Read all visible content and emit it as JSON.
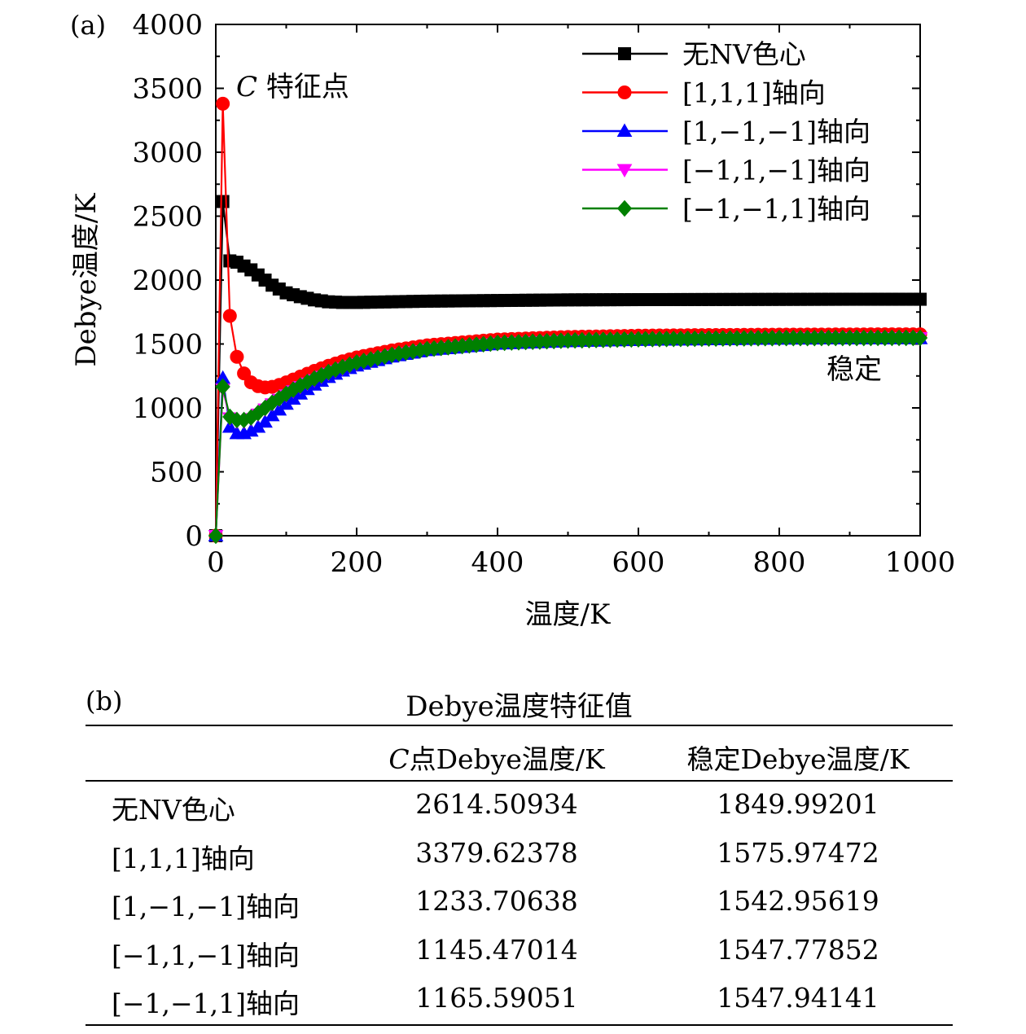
{
  "chart_data": {
    "type": "line",
    "panel_label": "(a)",
    "xlabel": "温度/K",
    "ylabel": "Debye温度/K",
    "xlim": [
      0,
      1000
    ],
    "ylim": [
      0,
      4000
    ],
    "xticks": [
      "0",
      "200",
      "400",
      "600",
      "800",
      "1000"
    ],
    "yticks": [
      "0",
      "500",
      "1000",
      "1500",
      "2000",
      "2500",
      "3000",
      "3500",
      "4000"
    ],
    "grid": false,
    "legend_position": "top-right",
    "annotations": [
      {
        "text_italic": "C",
        "text": " 特征点"
      },
      {
        "text": "稳定"
      }
    ],
    "series": [
      {
        "name": "无NV色心",
        "color": "#000000",
        "marker": "square",
        "x": [
          0,
          10,
          20,
          30,
          40,
          50,
          60,
          70,
          80,
          90,
          100,
          120,
          140,
          160,
          180,
          200,
          250,
          300,
          400,
          500,
          600,
          700,
          800,
          900,
          1000
        ],
        "y": [
          0,
          2614.5,
          2150,
          2140,
          2110,
          2080,
          2040,
          2000,
          1960,
          1930,
          1900,
          1870,
          1845,
          1830,
          1825,
          1825,
          1830,
          1835,
          1840,
          1845,
          1847,
          1848,
          1849,
          1850,
          1850
        ]
      },
      {
        "name": "[1,1,1]轴向",
        "color": "#ff0000",
        "marker": "circle",
        "x": [
          0,
          10,
          20,
          30,
          40,
          50,
          60,
          70,
          80,
          90,
          100,
          120,
          140,
          160,
          180,
          200,
          250,
          300,
          400,
          500,
          600,
          700,
          800,
          900,
          1000
        ],
        "y": [
          0,
          3379.6,
          1720,
          1400,
          1270,
          1200,
          1170,
          1160,
          1165,
          1180,
          1200,
          1245,
          1290,
          1330,
          1365,
          1395,
          1450,
          1490,
          1535,
          1555,
          1565,
          1570,
          1573,
          1575,
          1576
        ]
      },
      {
        "name": "[1,−1,−1]轴向",
        "color": "#0000ff",
        "marker": "triangle-up",
        "x": [
          0,
          10,
          20,
          30,
          40,
          50,
          60,
          70,
          80,
          90,
          100,
          120,
          140,
          160,
          180,
          200,
          250,
          300,
          400,
          500,
          600,
          700,
          800,
          900,
          1000
        ],
        "y": [
          0,
          1233.7,
          850,
          800,
          800,
          820,
          850,
          890,
          940,
          985,
          1030,
          1110,
          1180,
          1240,
          1290,
          1330,
          1400,
          1450,
          1500,
          1520,
          1530,
          1535,
          1540,
          1542,
          1543
        ]
      },
      {
        "name": "[−1,1,−1]轴向",
        "color": "#ff00ff",
        "marker": "triangle-down",
        "x": [
          0,
          10,
          20,
          30,
          40,
          50,
          60,
          70,
          80,
          90,
          100,
          120,
          140,
          160,
          180,
          200,
          250,
          300,
          400,
          500,
          600,
          700,
          800,
          900,
          1000
        ],
        "y": [
          0,
          1145.5,
          920,
          895,
          895,
          915,
          950,
          990,
          1030,
          1065,
          1100,
          1165,
          1220,
          1270,
          1310,
          1345,
          1410,
          1455,
          1505,
          1525,
          1535,
          1540,
          1545,
          1547,
          1548
        ]
      },
      {
        "name": "[−1,−1,1]轴向",
        "color": "#008000",
        "marker": "diamond",
        "x": [
          0,
          10,
          20,
          30,
          40,
          50,
          60,
          70,
          80,
          90,
          100,
          120,
          140,
          160,
          180,
          200,
          250,
          300,
          400,
          500,
          600,
          700,
          800,
          900,
          1000
        ],
        "y": [
          0,
          1165.6,
          930,
          905,
          905,
          925,
          960,
          1000,
          1040,
          1075,
          1110,
          1175,
          1230,
          1280,
          1320,
          1355,
          1415,
          1460,
          1508,
          1527,
          1537,
          1542,
          1546,
          1547,
          1548
        ]
      }
    ]
  },
  "table": {
    "panel_label": "(b)",
    "title": "Debye温度特征值",
    "header_col1_italic": "C",
    "header_col1_rest": "点Debye温度/K",
    "header_col2": "稳定Debye温度/K",
    "rows": [
      {
        "name": "无NV色心",
        "c_point": "2614.50934",
        "stable": "1849.99201"
      },
      {
        "name": "[1,1,1]轴向",
        "c_point": "3379.62378",
        "stable": "1575.97472"
      },
      {
        "name": "[1,−1,−1]轴向",
        "c_point": "1233.70638",
        "stable": "1542.95619"
      },
      {
        "name": "[−1,1,−1]轴向",
        "c_point": "1145.47014",
        "stable": "1547.77852"
      },
      {
        "name": "[−1,−1,1]轴向",
        "c_point": "1165.59051",
        "stable": "1547.94141"
      }
    ]
  }
}
